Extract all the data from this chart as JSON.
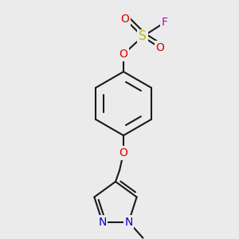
{
  "bg_color": "#ebebeb",
  "bond_color": "#1a1a1a",
  "bond_width": 1.5,
  "atom_colors": {
    "O": "#dd0000",
    "S": "#bbbb00",
    "F": "#bb00bb",
    "N": "#0000cc",
    "C": "#1a1a1a"
  },
  "font_size": 10,
  "font_size_S": 11,
  "font_size_me": 9
}
